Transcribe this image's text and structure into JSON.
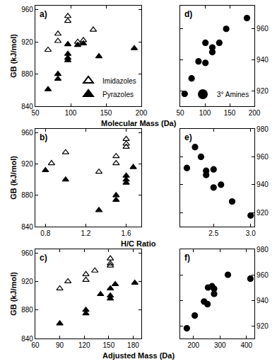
{
  "chart_data": [
    {
      "type": "scatter",
      "title": "a)",
      "x_label": "Molecular Mass (Da)",
      "y_label": "GB (kJ/mol)",
      "xlim": [
        50,
        200
      ],
      "xticks": [
        50,
        100,
        150,
        200
      ],
      "ylim": [
        840,
        965
      ],
      "yticks": [
        840,
        880,
        920,
        960
      ],
      "legend": "lower right",
      "series": [
        {
          "name": "Imidazoles",
          "color": "#000000",
          "marker": "triangle-up-open",
          "x": [
            68,
            82,
            82,
            96,
            96,
            110,
            118,
            132
          ],
          "values": [
            910,
            930,
            921,
            952,
            946,
            920,
            922,
            935
          ]
        },
        {
          "name": "Pyrazoles",
          "color": "#000000",
          "marker": "triangle-up",
          "x": [
            68,
            82,
            82,
            96,
            96,
            96,
            96,
            110,
            118,
            140,
            190
          ],
          "values": [
            861,
            880,
            874,
            917,
            905,
            900,
            897,
            916,
            918,
            902,
            912
          ]
        }
      ]
    },
    {
      "type": "scatter",
      "title": "b)",
      "x_label": "H/C Ratio",
      "y_label": "GB (kJ/mol)",
      "xlim": [
        0.7,
        1.75
      ],
      "xticks": [
        0.8,
        1.2,
        1.6
      ],
      "ylim": [
        840,
        965
      ],
      "yticks": [
        840,
        880,
        920,
        960
      ],
      "series": [
        {
          "name": "Imidazoles",
          "color": "#000000",
          "marker": "triangle-up-open",
          "x": [
            0.86,
            1.0,
            1.33,
            1.5,
            1.5,
            1.6,
            1.6,
            1.6
          ],
          "values": [
            921,
            935,
            910,
            930,
            921,
            952,
            946,
            942
          ]
        },
        {
          "name": "Pyrazoles",
          "color": "#000000",
          "marker": "triangle-up",
          "x": [
            0.8,
            1.0,
            1.33,
            1.5,
            1.5,
            1.6,
            1.6,
            1.6,
            1.67
          ],
          "values": [
            912,
            900,
            861,
            880,
            874,
            905,
            900,
            896,
            916
          ]
        }
      ]
    },
    {
      "type": "scatter",
      "title": "c)",
      "x_label": "Adjusted Mass (Da)",
      "y_label": "GB (kJ/mol)",
      "xlim": [
        60,
        190
      ],
      "xticks": [
        60,
        90,
        120,
        150,
        180
      ],
      "ylim": [
        840,
        965
      ],
      "yticks": [
        840,
        880,
        920,
        960
      ],
      "series": [
        {
          "name": "Imidazoles",
          "color": "#000000",
          "marker": "triangle-up-open",
          "x": [
            90,
            100,
            122,
            122,
            133,
            152,
            152,
            152
          ],
          "values": [
            910,
            920,
            930,
            922,
            935,
            952,
            945,
            942
          ]
        },
        {
          "name": "Pyrazoles",
          "color": "#000000",
          "marker": "triangle-up",
          "x": [
            90,
            122,
            122,
            140,
            152,
            152,
            152,
            158,
            182
          ],
          "values": [
            861,
            880,
            875,
            902,
            910,
            900,
            896,
            916,
            918
          ]
        }
      ]
    },
    {
      "type": "scatter",
      "title": "d)",
      "xlim": [
        50,
        200
      ],
      "xticks": [
        50,
        100,
        150,
        200
      ],
      "ylim": [
        910,
        975
      ],
      "yticks": [
        920,
        940,
        960
      ],
      "legend": "lower right",
      "series": [
        {
          "name": "3° Amines",
          "color": "#000000",
          "marker": "circle",
          "x": [
            59,
            73,
            87,
            101,
            101,
            115,
            115,
            129,
            143,
            185
          ],
          "values": [
            918,
            928,
            939,
            938,
            951,
            945,
            948,
            951,
            960,
            967
          ]
        }
      ]
    },
    {
      "type": "scatter",
      "title": "e)",
      "xlim": [
        2.05,
        3.05
      ],
      "xticks": [
        2.5,
        {
          "value": 3,
          "label": "3.0"
        }
      ],
      "ylim": [
        910,
        980
      ],
      "yticks": [
        920,
        940,
        960,
        980
      ],
      "series": [
        {
          "name": "3° Amines",
          "color": "#000000",
          "marker": "circle",
          "x": [
            2.14,
            2.25,
            2.33,
            2.4,
            2.4,
            2.5,
            2.5,
            2.6,
            2.75,
            3.0
          ],
          "values": [
            952,
            967,
            960,
            950,
            947,
            951,
            938,
            940,
            928,
            918
          ]
        }
      ]
    },
    {
      "type": "scatter",
      "title": "f)",
      "xlim": [
        150,
        430
      ],
      "xticks": [
        200,
        300,
        400
      ],
      "ylim": [
        910,
        980
      ],
      "yticks": [
        920,
        940,
        960,
        980
      ],
      "series": [
        {
          "name": "3° Amines",
          "color": "#000000",
          "marker": "circle",
          "x": [
            175,
            205,
            240,
            253,
            255,
            270,
            278,
            278,
            330,
            415
          ],
          "values": [
            918,
            928,
            939,
            937,
            950,
            951,
            949,
            945,
            960,
            957
          ]
        }
      ]
    }
  ]
}
